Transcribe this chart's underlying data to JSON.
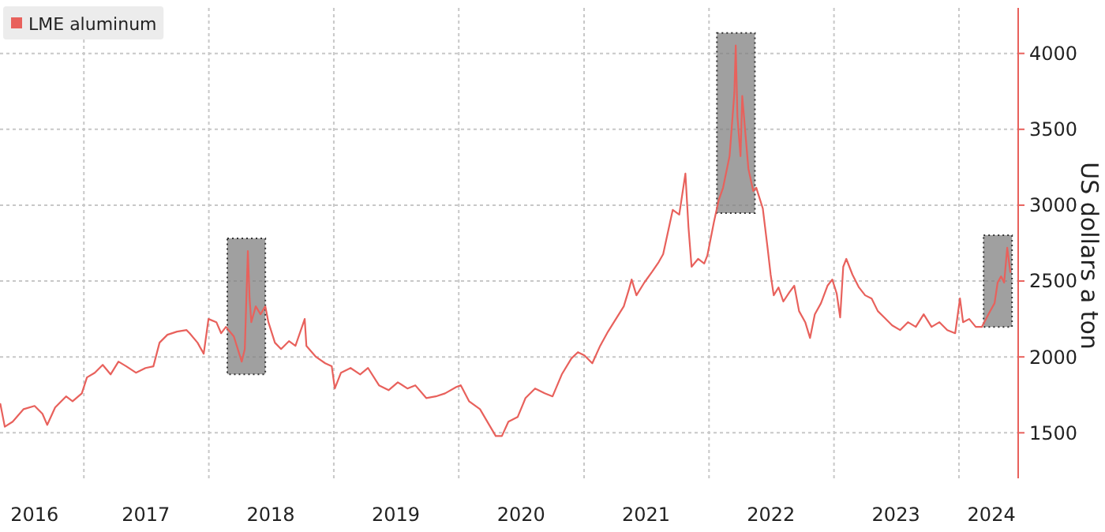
{
  "chart_data": {
    "type": "line",
    "ylabel": "US dollars a ton",
    "legend": "top left",
    "grid": true,
    "xlim": [
      "2016-05-01",
      "2024-06-22"
    ],
    "xticks": [
      {
        "value": "2016-08-10",
        "label": "2016"
      },
      {
        "value": "2017-01-01",
        "label": null
      },
      {
        "value": "2017-07-01",
        "label": "2017"
      },
      {
        "value": "2018-01-01",
        "label": null
      },
      {
        "value": "2018-07-01",
        "label": "2018"
      },
      {
        "value": "2019-01-01",
        "label": null
      },
      {
        "value": "2019-07-01",
        "label": "2019"
      },
      {
        "value": "2020-01-01",
        "label": null
      },
      {
        "value": "2020-07-01",
        "label": "2020"
      },
      {
        "value": "2021-01-01",
        "label": null
      },
      {
        "value": "2021-07-01",
        "label": "2021"
      },
      {
        "value": "2022-01-01",
        "label": null
      },
      {
        "value": "2022-07-01",
        "label": "2022"
      },
      {
        "value": "2023-01-01",
        "label": null
      },
      {
        "value": "2023-07-01",
        "label": "2023"
      },
      {
        "value": "2024-01-01",
        "label": null
      },
      {
        "value": "2024-04-05",
        "label": "2024"
      }
    ],
    "ylim": [
      1200,
      4300
    ],
    "yticks": [
      1500,
      2000,
      2500,
      3000,
      3500,
      4000
    ],
    "bands": [
      {
        "axis": "x",
        "from": "2018-02-24",
        "to": "2018-06-15",
        "color": "#808080"
      },
      {
        "axis": "x",
        "from": "2022-01-24",
        "to": "2022-05-15",
        "color": "#808080"
      },
      {
        "axis": "x",
        "from": "2024-03-13",
        "to": "2024-06-04",
        "color": "#808080"
      }
    ],
    "series": [
      {
        "name": "LME aluminum",
        "color": "#e8615c",
        "x": [
          "2016-05-02",
          "2016-05-15",
          "2016-06-07",
          "2016-07-09",
          "2016-08-10",
          "2016-09-02",
          "2016-09-16",
          "2016-10-09",
          "2016-11-10",
          "2016-11-29",
          "2016-12-26",
          "2017-01-10",
          "2017-02-02",
          "2017-02-25",
          "2017-03-20",
          "2017-04-12",
          "2017-05-05",
          "2017-06-02",
          "2017-06-30",
          "2017-07-23",
          "2017-08-10",
          "2017-09-02",
          "2017-09-30",
          "2017-10-28",
          "2017-11-06",
          "2017-11-29",
          "2017-12-17",
          "2017-12-31",
          "2018-01-23",
          "2018-02-06",
          "2018-02-20",
          "2018-03-15",
          "2018-04-07",
          "2018-04-16",
          "2018-04-25",
          "2018-04-30",
          "2018-05-05",
          "2018-05-18",
          "2018-06-01",
          "2018-06-15",
          "2018-06-24",
          "2018-07-13",
          "2018-07-31",
          "2018-08-23",
          "2018-09-11",
          "2018-10-08",
          "2018-10-13",
          "2018-11-10",
          "2018-12-07",
          "2018-12-26",
          "2019-01-04",
          "2019-01-22",
          "2019-02-19",
          "2019-03-19",
          "2019-04-11",
          "2019-05-13",
          "2019-06-10",
          "2019-07-07",
          "2019-08-04",
          "2019-08-27",
          "2019-09-28",
          "2019-10-26",
          "2019-11-22",
          "2019-12-25",
          "2020-01-07",
          "2020-01-31",
          "2020-03-03",
          "2020-03-30",
          "2020-04-18",
          "2020-05-06",
          "2020-05-25",
          "2020-06-21",
          "2020-07-14",
          "2020-08-11",
          "2020-09-08",
          "2020-10-01",
          "2020-10-28",
          "2020-11-25",
          "2020-12-14",
          "2021-01-02",
          "2021-01-25",
          "2021-02-17",
          "2021-03-12",
          "2021-04-04",
          "2021-04-27",
          "2021-05-11",
          "2021-05-20",
          "2021-06-03",
          "2021-06-26",
          "2021-07-19",
          "2021-08-07",
          "2021-08-20",
          "2021-09-08",
          "2021-09-17",
          "2021-10-06",
          "2021-10-24",
          "2021-11-02",
          "2021-11-11",
          "2021-11-30",
          "2021-12-18",
          "2021-12-27",
          "2022-01-15",
          "2022-01-29",
          "2022-02-11",
          "2022-03-02",
          "2022-03-16",
          "2022-03-20",
          "2022-03-25",
          "2022-04-03",
          "2022-04-08",
          "2022-04-17",
          "2022-04-26",
          "2022-05-10",
          "2022-05-19",
          "2022-06-07",
          "2022-06-21",
          "2022-06-30",
          "2022-07-09",
          "2022-07-23",
          "2022-08-06",
          "2022-08-24",
          "2022-09-07",
          "2022-09-21",
          "2022-10-09",
          "2022-10-23",
          "2022-11-06",
          "2022-11-24",
          "2022-12-13",
          "2022-12-27",
          "2023-01-09",
          "2023-01-19",
          "2023-01-28",
          "2023-02-06",
          "2023-02-24",
          "2023-03-15",
          "2023-04-02",
          "2023-04-21",
          "2023-05-09",
          "2023-05-28",
          "2023-06-20",
          "2023-07-13",
          "2023-08-05",
          "2023-08-28",
          "2023-09-20",
          "2023-10-13",
          "2023-11-05",
          "2023-11-28",
          "2023-12-21",
          "2024-01-04",
          "2024-01-13",
          "2024-01-31",
          "2024-02-19",
          "2024-03-08",
          "2024-03-27",
          "2024-04-14",
          "2024-04-23",
          "2024-05-03",
          "2024-05-12",
          "2024-05-21",
          "2024-05-30"
        ],
        "values": [
          1690,
          1540,
          1573,
          1656,
          1677,
          1625,
          1552,
          1667,
          1740,
          1708,
          1760,
          1865,
          1896,
          1948,
          1885,
          1969,
          1938,
          1896,
          1927,
          1938,
          2094,
          2146,
          2167,
          2177,
          2156,
          2094,
          2021,
          2250,
          2229,
          2156,
          2198,
          2135,
          1969,
          2052,
          2698,
          2385,
          2229,
          2333,
          2281,
          2333,
          2229,
          2094,
          2052,
          2104,
          2073,
          2250,
          2073,
          2000,
          1958,
          1938,
          1792,
          1896,
          1927,
          1885,
          1927,
          1813,
          1781,
          1833,
          1792,
          1813,
          1729,
          1740,
          1760,
          1802,
          1813,
          1708,
          1656,
          1552,
          1479,
          1479,
          1573,
          1604,
          1729,
          1792,
          1760,
          1740,
          1885,
          1990,
          2031,
          2010,
          1958,
          2073,
          2167,
          2250,
          2333,
          2437,
          2510,
          2406,
          2490,
          2562,
          2625,
          2677,
          2875,
          2969,
          2938,
          3208,
          2854,
          2594,
          2646,
          2615,
          2667,
          2885,
          3031,
          3115,
          3323,
          3740,
          4052,
          3583,
          3323,
          3719,
          3479,
          3240,
          3094,
          3115,
          2979,
          2719,
          2542,
          2406,
          2458,
          2365,
          2427,
          2469,
          2302,
          2229,
          2125,
          2281,
          2354,
          2469,
          2510,
          2417,
          2260,
          2594,
          2646,
          2542,
          2458,
          2406,
          2385,
          2302,
          2260,
          2208,
          2177,
          2229,
          2198,
          2281,
          2198,
          2229,
          2177,
          2156,
          2385,
          2229,
          2250,
          2198,
          2198,
          2281,
          2354,
          2490,
          2531,
          2490,
          2719,
          2560
        ]
      }
    ]
  }
}
